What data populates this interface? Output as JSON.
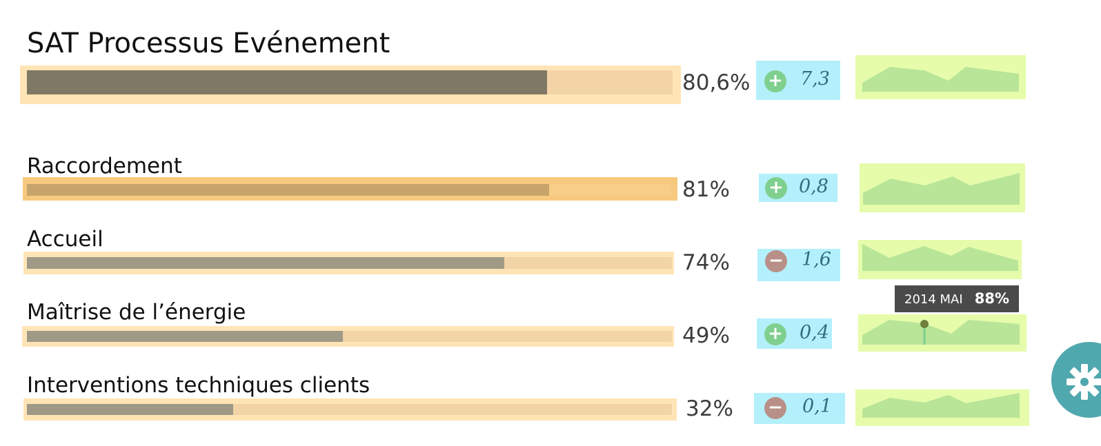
{
  "kpis": [
    {
      "title": "SAT Processus Evénement",
      "percent_label": "80,6%",
      "progress": 0.806,
      "trend": "up",
      "trend_icon": "plus-circle-icon",
      "delta": "7,3"
    },
    {
      "title": "Raccordement",
      "percent_label": "81%",
      "progress": 0.81,
      "trend": "up",
      "trend_icon": "plus-circle-icon",
      "delta": "0,8"
    },
    {
      "title": "Accueil",
      "percent_label": "74%",
      "progress": 0.74,
      "trend": "down",
      "trend_icon": "minus-circle-icon",
      "delta": "1,6"
    },
    {
      "title": "Maîtrise de l’énergie",
      "percent_label": "49%",
      "progress": 0.49,
      "trend": "up",
      "trend_icon": "plus-circle-icon",
      "delta": "0,4"
    },
    {
      "title": "Interventions techniques clients",
      "percent_label": "32%",
      "progress": 0.32,
      "trend": "down",
      "trend_icon": "minus-circle-icon",
      "delta": "0,1"
    }
  ],
  "tooltip": {
    "period": "2014 MAI",
    "value": "88%"
  },
  "settings_button": {
    "icon": "gear-icon"
  },
  "colors": {
    "bar_fill_main": "#7f7864",
    "bar_fill_row": "#9e9a86",
    "bar_fill_highlight": "#c7a46c",
    "bar_track": "#f3d4a7",
    "bar_outer": "#ffe4b6",
    "bar_outer_highlight": "#f7c97f",
    "delta_bg": "#b3f0fb",
    "sign_up": "#7fcf8e",
    "sign_down": "#b99088",
    "spark_bg": "#e6fcab",
    "spark_fill": "#b9e598",
    "marker": "#6f7f3a",
    "tooltip_bg": "#4a4a4a",
    "settings_bg": "#4fa8ad"
  }
}
